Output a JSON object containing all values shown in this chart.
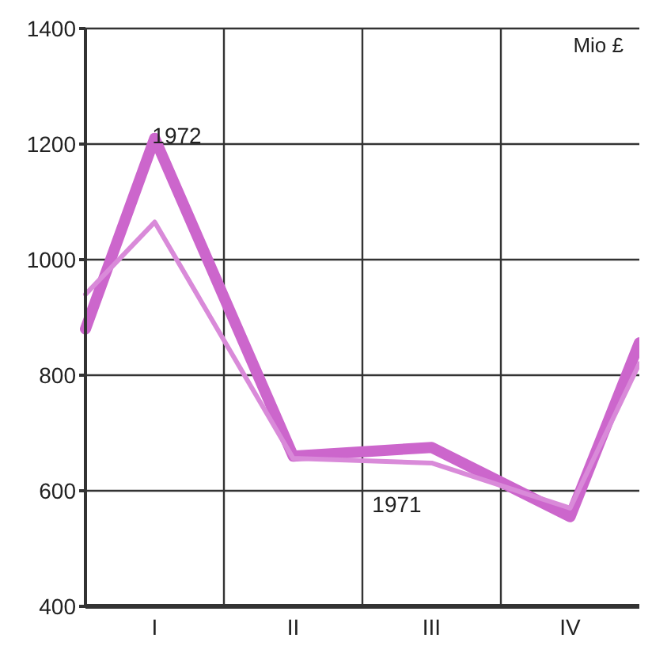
{
  "chart_data": {
    "type": "line",
    "ylabel": "Mio £",
    "categories": [
      null,
      "I",
      null,
      "II",
      null,
      "III",
      null,
      "IV",
      null
    ],
    "series": [
      {
        "name": "1972",
        "color": "#cc66cc",
        "values": [
          880,
          1210,
          null,
          660,
          null,
          675,
          null,
          555,
          856
        ]
      },
      {
        "name": "1971",
        "color": "#d98ad9",
        "values": [
          940,
          1065,
          null,
          656,
          null,
          648,
          null,
          570,
          820
        ]
      }
    ],
    "ylim": [
      400,
      1400
    ],
    "yticks": [
      400,
      600,
      800,
      1000,
      1200,
      1400
    ],
    "grid": true,
    "marker": "none",
    "line_style": "solid"
  }
}
